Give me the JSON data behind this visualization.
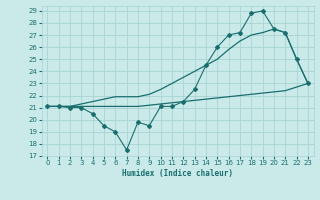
{
  "xlabel": "Humidex (Indice chaleur)",
  "xlim": [
    -0.5,
    23.5
  ],
  "ylim": [
    17,
    29.4
  ],
  "yticks": [
    17,
    18,
    19,
    20,
    21,
    22,
    23,
    24,
    25,
    26,
    27,
    28,
    29
  ],
  "xticks": [
    0,
    1,
    2,
    3,
    4,
    5,
    6,
    7,
    8,
    9,
    10,
    11,
    12,
    13,
    14,
    15,
    16,
    17,
    18,
    19,
    20,
    21,
    22,
    23
  ],
  "bg_color": "#caeaea",
  "line_color": "#1a6e6e",
  "grid_color": "#a8d4d4",
  "lines": [
    {
      "x": [
        0,
        1,
        2,
        3,
        4,
        5,
        6,
        7,
        8,
        9,
        10,
        11,
        12,
        13,
        14,
        15,
        16,
        17,
        18,
        19,
        20,
        21,
        22,
        23
      ],
      "y": [
        21.1,
        21.1,
        21.1,
        21.1,
        21.1,
        21.1,
        21.1,
        21.1,
        21.1,
        21.2,
        21.3,
        21.4,
        21.5,
        21.6,
        21.7,
        21.8,
        21.9,
        22.0,
        22.1,
        22.2,
        22.3,
        22.4,
        22.7,
        23.0
      ],
      "marker": null,
      "linestyle": "-",
      "linewidth": 0.9
    },
    {
      "x": [
        0,
        1,
        2,
        3,
        4,
        5,
        6,
        7,
        8,
        9,
        10,
        11,
        12,
        13,
        14,
        15,
        16,
        17,
        18,
        19,
        20,
        21,
        22,
        23
      ],
      "y": [
        21.1,
        21.1,
        21.1,
        21.3,
        21.5,
        21.7,
        21.9,
        21.9,
        21.9,
        22.1,
        22.5,
        23.0,
        23.5,
        24.0,
        24.5,
        25.0,
        25.8,
        26.5,
        27.0,
        27.2,
        27.5,
        27.2,
        25.0,
        23.0
      ],
      "marker": null,
      "linestyle": "-",
      "linewidth": 0.9
    },
    {
      "x": [
        0,
        1,
        2,
        3,
        4,
        5,
        6,
        7,
        8,
        9,
        10,
        11,
        12,
        13,
        14,
        15,
        16,
        17,
        18,
        19,
        20,
        21,
        22,
        23
      ],
      "y": [
        21.1,
        21.1,
        21.0,
        21.0,
        20.5,
        19.5,
        19.0,
        17.5,
        19.8,
        19.5,
        21.1,
        21.1,
        21.5,
        22.5,
        24.5,
        26.0,
        27.0,
        27.2,
        28.8,
        29.0,
        27.5,
        27.2,
        25.0,
        23.0
      ],
      "marker": "D",
      "linestyle": "-",
      "linewidth": 0.8
    }
  ]
}
